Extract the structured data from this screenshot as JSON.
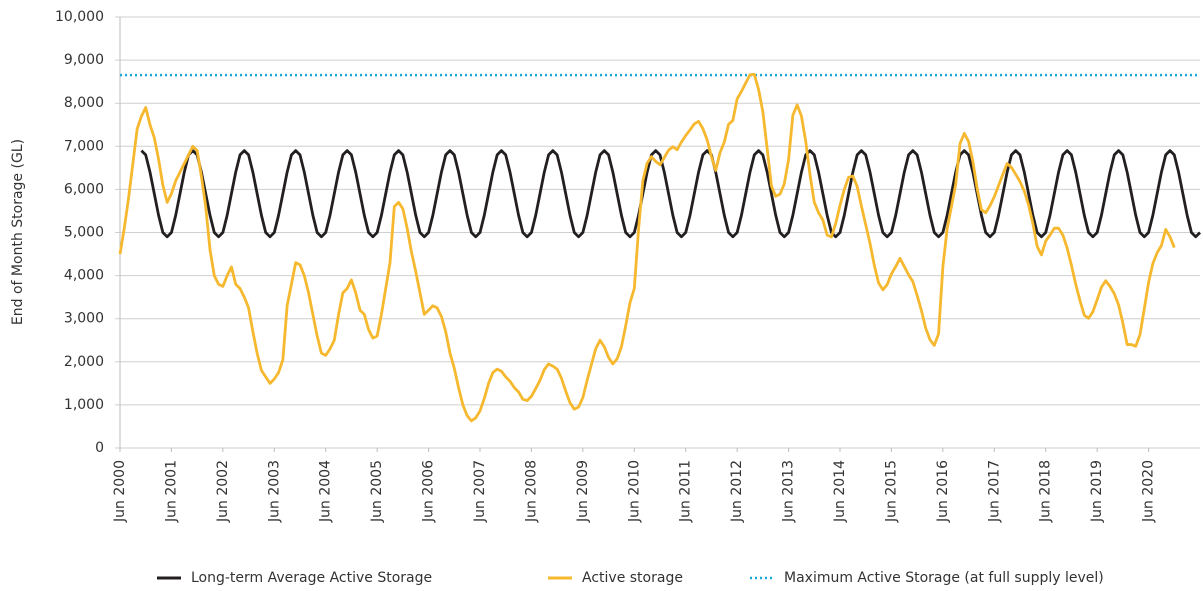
{
  "chart_data": {
    "type": "line",
    "y_label": "End of Month Storage (GL)",
    "x": [
      "2000-06",
      "2000-07",
      "2000-08",
      "2000-09",
      "2000-10",
      "2000-11",
      "2000-12",
      "2001-01",
      "2001-02",
      "2001-03",
      "2001-04",
      "2001-05",
      "2001-06",
      "2001-07",
      "2001-08",
      "2001-09",
      "2001-10",
      "2001-11",
      "2001-12",
      "2002-01",
      "2002-02",
      "2002-03",
      "2002-04",
      "2002-05",
      "2002-06",
      "2002-07",
      "2002-08",
      "2002-09",
      "2002-10",
      "2002-11",
      "2002-12",
      "2003-01",
      "2003-02",
      "2003-03",
      "2003-04",
      "2003-05",
      "2003-06",
      "2003-07",
      "2003-08",
      "2003-09",
      "2003-10",
      "2003-11",
      "2003-12",
      "2004-01",
      "2004-02",
      "2004-03",
      "2004-04",
      "2004-05",
      "2004-06",
      "2004-07",
      "2004-08",
      "2004-09",
      "2004-10",
      "2004-11",
      "2004-12",
      "2005-01",
      "2005-02",
      "2005-03",
      "2005-04",
      "2005-05",
      "2005-06",
      "2005-07",
      "2005-08",
      "2005-09",
      "2005-10",
      "2005-11",
      "2005-12",
      "2006-01",
      "2006-02",
      "2006-03",
      "2006-04",
      "2006-05",
      "2006-06",
      "2006-07",
      "2006-08",
      "2006-09",
      "2006-10",
      "2006-11",
      "2006-12",
      "2007-01",
      "2007-02",
      "2007-03",
      "2007-04",
      "2007-05",
      "2007-06",
      "2007-07",
      "2007-08",
      "2007-09",
      "2007-10",
      "2007-11",
      "2007-12",
      "2008-01",
      "2008-02",
      "2008-03",
      "2008-04",
      "2008-05",
      "2008-06",
      "2008-07",
      "2008-08",
      "2008-09",
      "2008-10",
      "2008-11",
      "2008-12",
      "2009-01",
      "2009-02",
      "2009-03",
      "2009-04",
      "2009-05",
      "2009-06",
      "2009-07",
      "2009-08",
      "2009-09",
      "2009-10",
      "2009-11",
      "2009-12",
      "2010-01",
      "2010-02",
      "2010-03",
      "2010-04",
      "2010-05",
      "2010-06",
      "2010-07",
      "2010-08",
      "2010-09",
      "2010-10",
      "2010-11",
      "2010-12",
      "2011-01",
      "2011-02",
      "2011-03",
      "2011-04",
      "2011-05",
      "2011-06",
      "2011-07",
      "2011-08",
      "2011-09",
      "2011-10",
      "2011-11",
      "2011-12",
      "2012-01",
      "2012-02",
      "2012-03",
      "2012-04",
      "2012-05",
      "2012-06",
      "2012-07",
      "2012-08",
      "2012-09",
      "2012-10",
      "2012-11",
      "2012-12",
      "2013-01",
      "2013-02",
      "2013-03",
      "2013-04",
      "2013-05",
      "2013-06",
      "2013-07",
      "2013-08",
      "2013-09",
      "2013-10",
      "2013-11",
      "2013-12",
      "2014-01",
      "2014-02",
      "2014-03",
      "2014-04",
      "2014-05",
      "2014-06",
      "2014-07",
      "2014-08",
      "2014-09",
      "2014-10",
      "2014-11",
      "2014-12",
      "2015-01",
      "2015-02",
      "2015-03",
      "2015-04",
      "2015-05",
      "2015-06",
      "2015-07",
      "2015-08",
      "2015-09",
      "2015-10",
      "2015-11",
      "2015-12",
      "2016-01",
      "2016-02",
      "2016-03",
      "2016-04",
      "2016-05",
      "2016-06",
      "2016-07",
      "2016-08",
      "2016-09",
      "2016-10",
      "2016-11",
      "2016-12",
      "2017-01",
      "2017-02",
      "2017-03",
      "2017-04",
      "2017-05",
      "2017-06",
      "2017-07",
      "2017-08",
      "2017-09",
      "2017-10",
      "2017-11",
      "2017-12",
      "2018-01",
      "2018-02",
      "2018-03",
      "2018-04",
      "2018-05",
      "2018-06",
      "2018-07",
      "2018-08",
      "2018-09",
      "2018-10",
      "2018-11",
      "2018-12",
      "2019-01",
      "2019-02",
      "2019-03",
      "2019-04",
      "2019-05",
      "2019-06",
      "2019-07",
      "2019-08",
      "2019-09",
      "2019-10",
      "2019-11",
      "2019-12",
      "2020-01",
      "2020-02",
      "2020-03",
      "2020-04",
      "2020-05",
      "2020-06",
      "2020-07",
      "2020-08",
      "2020-09",
      "2020-10",
      "2020-11",
      "2020-12",
      "2021-01",
      "2021-02",
      "2021-03",
      "2021-04",
      "2021-05",
      "2021-06"
    ],
    "series": [
      {
        "name": "Long-term Average Active Storage",
        "color": "#231f20",
        "values": [
          null,
          null,
          null,
          null,
          null,
          6900,
          6800,
          6400,
          5900,
          5400,
          5000,
          4900,
          5000,
          5400,
          5900,
          6400,
          6800,
          6900,
          6800,
          6400,
          5900,
          5400,
          5000,
          4900,
          5000,
          5400,
          5900,
          6400,
          6800,
          6900,
          6800,
          6400,
          5900,
          5400,
          5000,
          4900,
          5000,
          5400,
          5900,
          6400,
          6800,
          6900,
          6800,
          6400,
          5900,
          5400,
          5000,
          4900,
          5000,
          5400,
          5900,
          6400,
          6800,
          6900,
          6800,
          6400,
          5900,
          5400,
          5000,
          4900,
          5000,
          5400,
          5900,
          6400,
          6800,
          6900,
          6800,
          6400,
          5900,
          5400,
          5000,
          4900,
          5000,
          5400,
          5900,
          6400,
          6800,
          6900,
          6800,
          6400,
          5900,
          5400,
          5000,
          4900,
          5000,
          5400,
          5900,
          6400,
          6800,
          6900,
          6800,
          6400,
          5900,
          5400,
          5000,
          4900,
          5000,
          5400,
          5900,
          6400,
          6800,
          6900,
          6800,
          6400,
          5900,
          5400,
          5000,
          4900,
          5000,
          5400,
          5900,
          6400,
          6800,
          6900,
          6800,
          6400,
          5900,
          5400,
          5000,
          4900,
          5000,
          5400,
          5900,
          6400,
          6800,
          6900,
          6800,
          6400,
          5900,
          5400,
          5000,
          4900,
          5000,
          5400,
          5900,
          6400,
          6800,
          6900,
          6800,
          6400,
          5900,
          5400,
          5000,
          4900,
          5000,
          5400,
          5900,
          6400,
          6800,
          6900,
          6800,
          6400,
          5900,
          5400,
          5000,
          4900,
          5000,
          5400,
          5900,
          6400,
          6800,
          6900,
          6800,
          6400,
          5900,
          5400,
          5000,
          4900,
          5000,
          5400,
          5900,
          6400,
          6800,
          6900,
          6800,
          6400,
          5900,
          5400,
          5000,
          4900,
          5000,
          5400,
          5900,
          6400,
          6800,
          6900,
          6800,
          6400,
          5900,
          5400,
          5000,
          4900,
          5000,
          5400,
          5900,
          6400,
          6800,
          6900,
          6800,
          6400,
          5900,
          5400,
          5000,
          4900,
          5000,
          5400,
          5900,
          6400,
          6800,
          6900,
          6800,
          6400,
          5900,
          5400,
          5000,
          4900,
          5000,
          5400,
          5900,
          6400,
          6800,
          6900,
          6800,
          6400,
          5900,
          5400,
          5000,
          4900,
          5000,
          5400,
          5900,
          6400,
          6800,
          6900,
          6800,
          6400,
          5900,
          5400,
          5000,
          4900,
          5000,
          5400,
          5900,
          6400,
          6800,
          6900,
          6800,
          6400,
          5900,
          5400,
          5000,
          4900,
          5000
        ]
      },
      {
        "name": "Active storage",
        "color": "#f5b82e",
        "values": [
          4500,
          5100,
          5800,
          6600,
          7400,
          7700,
          7900,
          7500,
          7200,
          6700,
          6100,
          5700,
          5900,
          6200,
          6400,
          6600,
          6800,
          7000,
          6900,
          6300,
          5600,
          4600,
          4000,
          3800,
          3750,
          4000,
          4200,
          3800,
          3700,
          3500,
          3250,
          2700,
          2200,
          1800,
          1650,
          1500,
          1600,
          1750,
          2050,
          3300,
          3800,
          4300,
          4250,
          4000,
          3600,
          3100,
          2600,
          2200,
          2150,
          2300,
          2500,
          3100,
          3600,
          3700,
          3900,
          3600,
          3200,
          3100,
          2750,
          2550,
          2600,
          3100,
          3700,
          4300,
          5600,
          5700,
          5550,
          5100,
          4550,
          4100,
          3600,
          3100,
          3200,
          3300,
          3250,
          3050,
          2700,
          2200,
          1850,
          1400,
          1000,
          750,
          630,
          700,
          860,
          1150,
          1500,
          1750,
          1830,
          1780,
          1650,
          1550,
          1400,
          1300,
          1130,
          1100,
          1200,
          1380,
          1570,
          1820,
          1950,
          1900,
          1830,
          1620,
          1320,
          1050,
          900,
          950,
          1170,
          1570,
          1940,
          2300,
          2500,
          2350,
          2100,
          1950,
          2070,
          2350,
          2840,
          3370,
          3700,
          5080,
          6200,
          6610,
          6760,
          6650,
          6570,
          6740,
          6910,
          6990,
          6920,
          7100,
          7250,
          7380,
          7520,
          7580,
          7410,
          7150,
          6760,
          6440,
          6850,
          7100,
          7510,
          7600,
          8100,
          8270,
          8470,
          8660,
          8670,
          8320,
          7800,
          6950,
          6080,
          5840,
          5890,
          6130,
          6690,
          7720,
          7960,
          7700,
          7120,
          6340,
          5700,
          5460,
          5290,
          4940,
          4900,
          5210,
          5630,
          6000,
          6280,
          6310,
          6070,
          5610,
          5180,
          4750,
          4240,
          3830,
          3670,
          3790,
          4040,
          4210,
          4400,
          4210,
          4020,
          3860,
          3540,
          3190,
          2780,
          2510,
          2380,
          2650,
          4200,
          5090,
          5600,
          6120,
          7060,
          7300,
          7110,
          6650,
          6020,
          5530,
          5460,
          5620,
          5830,
          6090,
          6350,
          6600,
          6510,
          6350,
          6180,
          5960,
          5640,
          5210,
          4680,
          4480,
          4800,
          4940,
          5100,
          5100,
          4940,
          4640,
          4240,
          3800,
          3420,
          3080,
          3010,
          3160,
          3440,
          3730,
          3880,
          3750,
          3580,
          3320,
          2900,
          2400,
          2400,
          2360,
          2630,
          3230,
          3840,
          4280,
          4530,
          4700,
          5070,
          4900,
          4650,
          null,
          null,
          null,
          null,
          null,
          null
        ]
      }
    ],
    "reference_lines": [
      {
        "name": "Maximum Active Storage (at full supply level)",
        "value": 8650,
        "color": "#1aa7d9",
        "style": "dotted"
      }
    ],
    "xlim": [
      "2000-06",
      "2021-06"
    ],
    "xticks": [
      {
        "value": "2000-06",
        "label": "Jun 2000"
      },
      {
        "value": "2001-06",
        "label": "Jun 2001"
      },
      {
        "value": "2002-06",
        "label": "Jun 2002"
      },
      {
        "value": "2003-06",
        "label": "Jun 2003"
      },
      {
        "value": "2004-06",
        "label": "Jun 2004"
      },
      {
        "value": "2005-06",
        "label": "Jun 2005"
      },
      {
        "value": "2006-06",
        "label": "Jun 2006"
      },
      {
        "value": "2007-06",
        "label": "Jun 2007"
      },
      {
        "value": "2008-06",
        "label": "Jun 2008"
      },
      {
        "value": "2009-06",
        "label": "Jun 2009"
      },
      {
        "value": "2010-06",
        "label": "Jun 2010"
      },
      {
        "value": "2011-06",
        "label": "Jun 2011"
      },
      {
        "value": "2012-06",
        "label": "Jun 2012"
      },
      {
        "value": "2013-06",
        "label": "Jun 2013"
      },
      {
        "value": "2014-06",
        "label": "Jun 2014"
      },
      {
        "value": "2015-06",
        "label": "Jun 2015"
      },
      {
        "value": "2016-06",
        "label": "Jun 2016"
      },
      {
        "value": "2017-06",
        "label": "Jun 2017"
      },
      {
        "value": "2018-06",
        "label": "Jun 2018"
      },
      {
        "value": "2019-06",
        "label": "Jun 2019"
      },
      {
        "value": "2020-06",
        "label": "Jun 2020"
      }
    ],
    "ylim": [
      0,
      10000
    ],
    "yticks": [
      0,
      {
        "value": 1000,
        "label": "1,000"
      },
      {
        "value": 2000,
        "label": "2,000"
      },
      {
        "value": 3000,
        "label": "3,000"
      },
      {
        "value": 4000,
        "label": "4,000"
      },
      {
        "value": 5000,
        "label": "5,000"
      },
      {
        "value": 6000,
        "label": "6,000"
      },
      {
        "value": 7000,
        "label": "7,000"
      },
      {
        "value": 8000,
        "label": "8,000"
      },
      {
        "value": 9000,
        "label": "9,000"
      },
      {
        "value": 10000,
        "label": "10,000"
      }
    ],
    "grid": true,
    "legend": "bottom"
  }
}
